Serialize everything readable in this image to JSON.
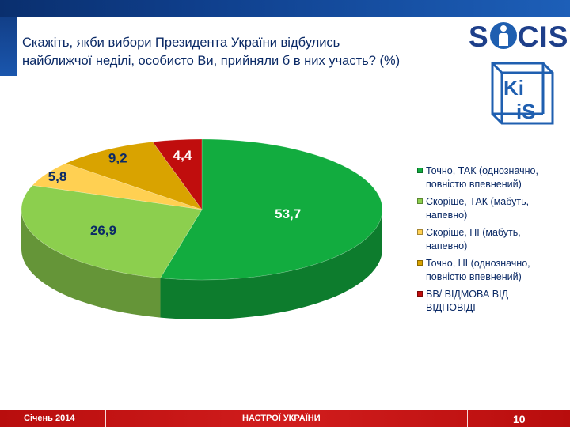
{
  "header": {
    "title_line1": "Скажіть, якби вибори Президента України відбулись",
    "title_line2": "найближчої неділі, особисто Ви, прийняли б в них участь? (%)"
  },
  "logos": {
    "socis": "SOCIS",
    "kiis": "KIIS"
  },
  "chart_data": {
    "type": "pie",
    "three_d": true,
    "start": "top, clockwise",
    "categories": [
      "Точно, ТАК (однозначно, повністю впевнений)",
      "Скоріше, ТАК (мабуть, напевно)",
      "Скоріше, НІ (мабуть, напевно)",
      "Точно, НІ (однозначно, повністю впевнений)",
      "ВВ/ ВІДМОВА ВІД ВІДПОВІДІ"
    ],
    "values": [
      53.7,
      26.9,
      5.8,
      9.2,
      4.4
    ],
    "data_labels": [
      "53,7",
      "26,9",
      "5,8",
      "9,2",
      "4,4"
    ],
    "colors": [
      "#12ac3f",
      "#8ccf4e",
      "#ffd052",
      "#d9a300",
      "#c00d0d"
    ],
    "legend_position": "right"
  },
  "legend": [
    {
      "line1": "Точно, ТАК (однозначно,",
      "line2": "повністю впевнений)",
      "color": "#12ac3f"
    },
    {
      "line1": "Скоріше, ТАК (мабуть,",
      "line2": "напевно)",
      "color": "#8ccf4e"
    },
    {
      "line1": "Скоріше, НІ (мабуть,",
      "line2": "напевно)",
      "color": "#ffd052"
    },
    {
      "line1": "Точно, НІ (однозначно,",
      "line2": "повністю впевнений)",
      "color": "#d9a300"
    },
    {
      "line1": "ВВ/ ВІДМОВА ВІД",
      "line2": "ВІДПОВІДІ",
      "color": "#c00d0d"
    }
  ],
  "footer": {
    "date": "Січень 2014",
    "title": "НАСТРОЇ УКРАЇНИ",
    "page": "10"
  }
}
